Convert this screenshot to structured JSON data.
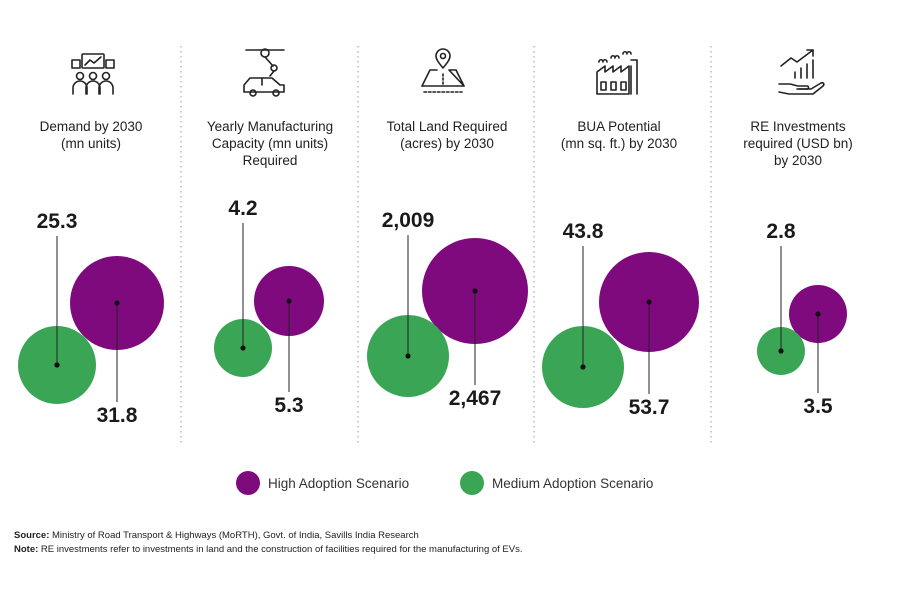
{
  "colors": {
    "high": "#7e0a7e",
    "medium": "#3aa655",
    "divider": "#aaaaaa",
    "icon": "#222222"
  },
  "legend": [
    {
      "label": "High Adoption Scenario",
      "color": "#7e0a7e"
    },
    {
      "label": "Medium Adoption Scenario",
      "color": "#3aa655"
    }
  ],
  "chart_data": {
    "type": "bubble",
    "series": [
      {
        "name": "Medium Adoption Scenario",
        "values": [
          25.3,
          4.2,
          2009,
          43.8,
          2.8
        ]
      },
      {
        "name": "High Adoption Scenario",
        "values": [
          31.8,
          5.3,
          2467,
          53.7,
          3.5
        ]
      }
    ],
    "categories": [
      "Demand by 2030 (mn units)",
      "Yearly Manufacturing Capacity (mn units) Required",
      "Total Land Required (acres) by 2030",
      "BUA Potential (mn sq. ft.) by 2030",
      "RE Investments required (USD bn) by 2030"
    ],
    "panels": [
      {
        "icon": "people-chart-icon",
        "title": [
          "Demand by 2030",
          "(mn units)"
        ],
        "medium_label": "25.3",
        "high_label": "31.8"
      },
      {
        "icon": "robot-arm-car-icon",
        "title": [
          "Yearly Manufacturing",
          "Capacity (mn units)",
          "Required"
        ],
        "medium_label": "4.2",
        "high_label": "5.3"
      },
      {
        "icon": "location-land-icon",
        "title": [
          "Total Land Required",
          "(acres) by 2030"
        ],
        "medium_label": "2,009",
        "high_label": "2,467"
      },
      {
        "icon": "factory-icon",
        "title": [
          "BUA Potential",
          "(mn sq. ft.) by 2030"
        ],
        "medium_label": "43.8",
        "high_label": "53.7"
      },
      {
        "icon": "hand-growth-chart-icon",
        "title": [
          "RE Investments",
          "required (USD bn)",
          "by 2030"
        ],
        "medium_label": "2.8",
        "high_label": "3.5"
      }
    ]
  },
  "footnotes": {
    "source_label": "Source:",
    "source_text": " Ministry of Road Transport & Highways (MoRTH), Govt. of India, Savills India Research",
    "note_label": "Note:",
    "note_text": " RE investments refer to investments in land and the construction of facilities required for the manufacturing of EVs."
  }
}
